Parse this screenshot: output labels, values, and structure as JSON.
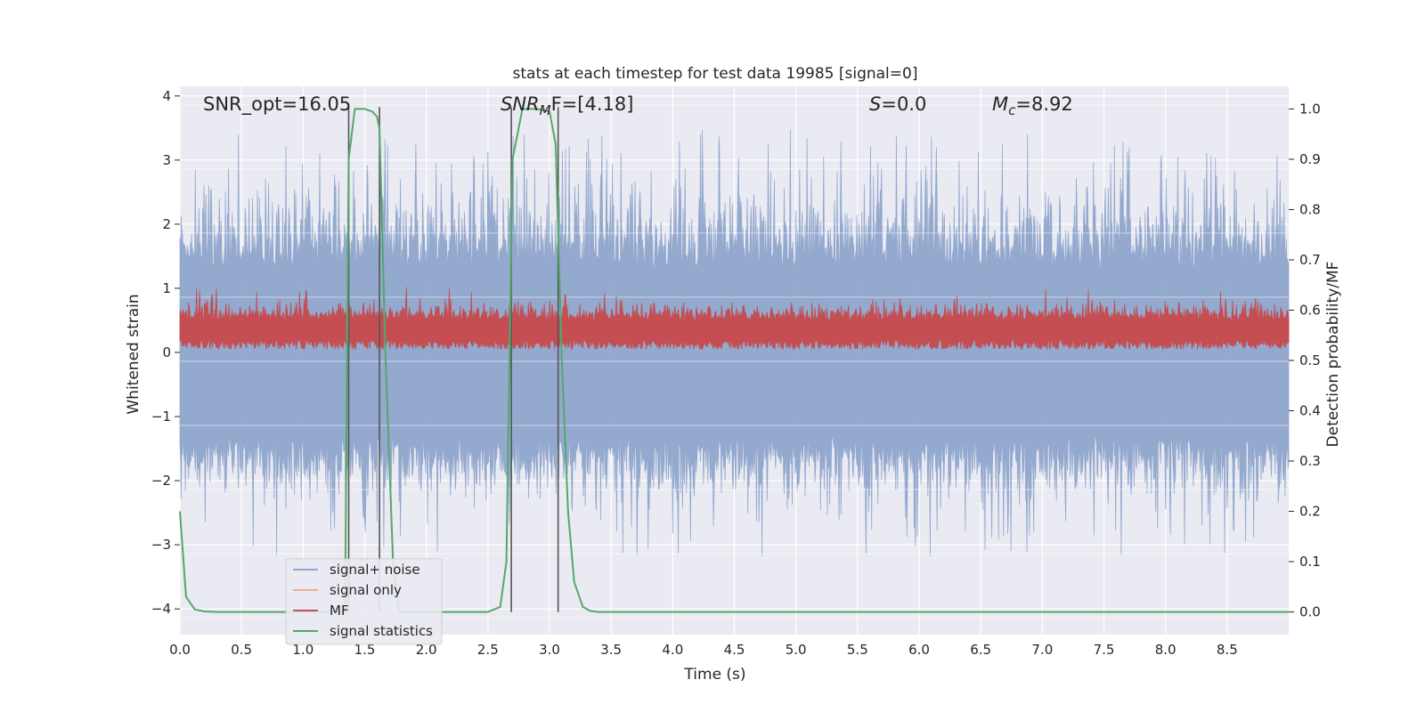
{
  "chart_data": {
    "type": "line",
    "title": "stats at each timestep for test data 19985 [signal=0]",
    "xlabel": "Time (s)",
    "ylabel": "Whitened strain",
    "ylabel_right": "Detection probability/MF",
    "xlim": [
      0,
      9.0
    ],
    "ylim": [
      -4.4,
      4.15
    ],
    "ylim_right": [
      -0.045,
      1.045
    ],
    "x_ticks": [
      0,
      0.5,
      1.0,
      1.5,
      2.0,
      2.5,
      3.0,
      3.5,
      4.0,
      4.5,
      5.0,
      5.5,
      6.0,
      6.5,
      7.0,
      7.5,
      8.0,
      8.5
    ],
    "x_tick_labels": [
      "0.0",
      "0.5",
      "1.0",
      "1.5",
      "2.0",
      "2.5",
      "3.0",
      "3.5",
      "4.0",
      "4.5",
      "5.0",
      "5.5",
      "6.0",
      "6.5",
      "7.0",
      "7.5",
      "8.0",
      "8.5"
    ],
    "y_ticks": [
      -4,
      -3,
      -2,
      -1,
      0,
      1,
      2,
      3,
      4
    ],
    "y_tick_labels": [
      "−4",
      "−3",
      "−2",
      "−1",
      "0",
      "1",
      "2",
      "3",
      "4"
    ],
    "y_ticks_right": [
      0,
      0.1,
      0.2,
      0.3,
      0.4,
      0.5,
      0.6,
      0.7,
      0.8,
      0.9,
      1.0
    ],
    "y_tick_labels_right": [
      "0.0",
      "0.1",
      "0.2",
      "0.3",
      "0.4",
      "0.5",
      "0.6",
      "0.7",
      "0.8",
      "0.9",
      "1.0"
    ],
    "grid": true,
    "legend_placement": "lower-left",
    "annotations": {
      "snr_opt": "SNR_opt=16.05",
      "snr_mf_italic": "SNR",
      "snr_mf_sub": "M",
      "snr_mf_rest": "F=[4.18]",
      "s_italic": "S",
      "s_rest": "=0.0",
      "mc_italic": "M",
      "mc_sub": "c",
      "mc_rest": "=8.92"
    },
    "vlines": [
      1.37,
      1.62,
      2.69,
      3.07
    ],
    "noise": {
      "description_seed": 19985,
      "upper_envelope_typical": 2.0,
      "upper_envelope_max": 3.8,
      "lower_envelope_typical": -1.8,
      "lower_envelope_min": -3.4,
      "n_samples": 1800
    },
    "mf": {
      "baseline": 0.3,
      "amplitude": 0.3
    },
    "signal_statistics": {
      "x": [
        0.0,
        0.05,
        0.12,
        0.2,
        0.3,
        0.5,
        1.0,
        1.34,
        1.37,
        1.42,
        1.5,
        1.56,
        1.6,
        1.62,
        1.67,
        1.73,
        1.78,
        2.0,
        2.5,
        2.6,
        2.65,
        2.7,
        2.78,
        2.9,
        3.0,
        3.05,
        3.1,
        3.15,
        3.2,
        3.27,
        3.33,
        3.4,
        4.0,
        9.0
      ],
      "y": [
        0.2,
        0.03,
        0.005,
        0.001,
        0.0,
        0.0,
        0.0,
        0.0,
        0.9,
        1.0,
        1.0,
        0.995,
        0.985,
        0.96,
        0.5,
        0.1,
        0.0,
        0.0,
        0.0,
        0.01,
        0.1,
        0.9,
        1.0,
        1.0,
        0.995,
        0.93,
        0.5,
        0.2,
        0.06,
        0.01,
        0.002,
        0.0,
        0.0,
        0.0
      ]
    },
    "series": [
      {
        "name": "signal+ noise",
        "color": "#8fa6cd"
      },
      {
        "name": "signal only",
        "color": "#ebae8f"
      },
      {
        "name": "MF",
        "color": "#c44e52"
      },
      {
        "name": "signal statistics",
        "color": "#55a868"
      }
    ],
    "colors": {
      "plot_bg": "#eaeaf2",
      "grid": "#ffffff",
      "vline": "#555555"
    }
  }
}
